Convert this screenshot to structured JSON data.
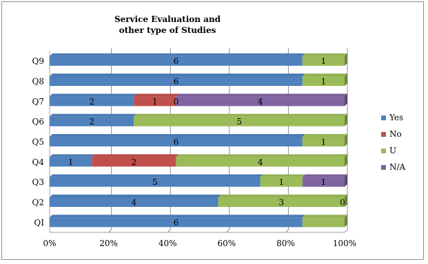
{
  "chart_data": {
    "type": "bar",
    "orientation": "horizontal",
    "stacked": "percent",
    "title": "Service Evaluation and other type of Studies",
    "categories": [
      "QI",
      "Q2",
      "Q3",
      "Q4",
      "Q5",
      "Q6",
      "Q7",
      "Q8",
      "Q9"
    ],
    "series": [
      {
        "name": "Yes",
        "color": "#4f81bd",
        "values": [
          6,
          4,
          5,
          1,
          6,
          2,
          2,
          6,
          6
        ]
      },
      {
        "name": "No",
        "color": "#c0504d",
        "values": [
          0,
          0,
          0,
          2,
          0,
          0,
          1,
          0,
          0
        ]
      },
      {
        "name": "U",
        "color": "#9bbb59",
        "values": [
          1,
          3,
          1,
          4,
          1,
          5,
          0,
          1,
          1
        ]
      },
      {
        "name": "N/A",
        "color": "#8064a2",
        "values": [
          0,
          0,
          1,
          0,
          0,
          0,
          4,
          0,
          0
        ]
      }
    ],
    "data_labels": [
      [
        "6",
        null,
        null,
        null
      ],
      [
        "4",
        null,
        "3",
        "0"
      ],
      [
        "5",
        null,
        "1",
        "1"
      ],
      [
        "1",
        "2",
        "4",
        null
      ],
      [
        "6",
        null,
        "1",
        null
      ],
      [
        "2",
        null,
        "5",
        null
      ],
      [
        "2",
        "1",
        "0",
        "4"
      ],
      [
        "6",
        null,
        "1",
        null
      ],
      [
        "6",
        null,
        "1",
        null
      ]
    ],
    "qi_labels": [
      "0",
      "1",
      "0"
    ],
    "x_ticks": [
      "0%",
      "20%",
      "40%",
      "60%",
      "80%",
      "100%"
    ],
    "xlim": [
      0,
      100
    ],
    "grid": true,
    "legend_position": "right"
  }
}
